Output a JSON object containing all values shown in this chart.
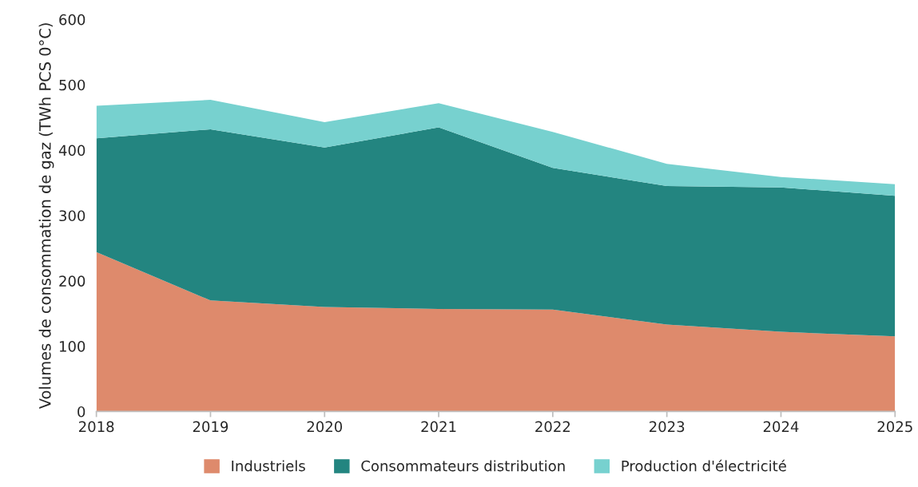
{
  "chart_data": {
    "type": "area",
    "stacked": true,
    "ylabel": "Volumes de consommation de gaz (TWh PCS 0°C)",
    "categories": [
      "2018",
      "2019",
      "2020",
      "2021",
      "2022",
      "2023",
      "2024",
      "2025"
    ],
    "series": [
      {
        "name": "Industriels",
        "color": "#de8a6c",
        "values": [
          244,
          170,
          160,
          157,
          156,
          133,
          122,
          115
        ]
      },
      {
        "name": "Consommateurs distribution",
        "color": "#238580",
        "values": [
          174,
          262,
          244,
          278,
          217,
          212,
          221,
          215
        ]
      },
      {
        "name": "Production d'électricité",
        "color": "#77d1cf",
        "values": [
          50,
          45,
          39,
          37,
          55,
          34,
          16,
          18
        ]
      }
    ],
    "ylim": [
      0,
      600
    ],
    "yticks": [
      0,
      100,
      200,
      300,
      400,
      500,
      600
    ],
    "grid": false,
    "legend": "bottom"
  }
}
